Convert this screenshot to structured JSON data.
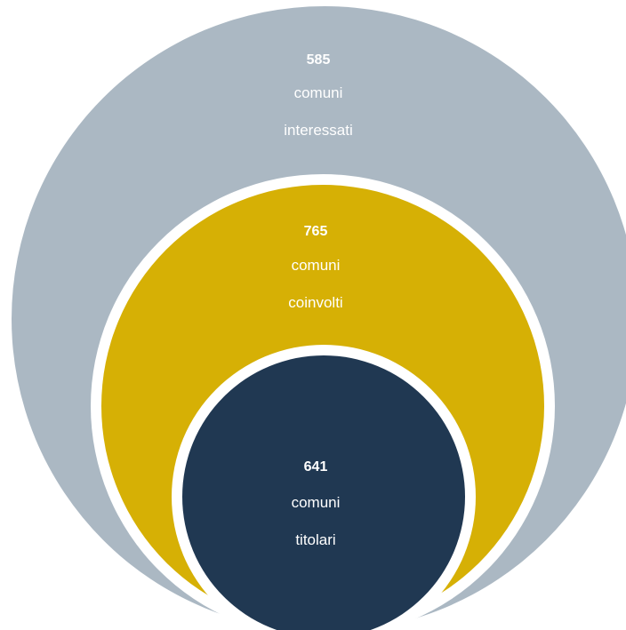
{
  "colors": {
    "outer": "#abb8c3",
    "middle": "#d6b005",
    "inner": "#203852",
    "gap": "#ffffff",
    "text": "#ffffff"
  },
  "circles": [
    {
      "value": "585",
      "line1": "comuni",
      "line2": "interessati"
    },
    {
      "value": "765",
      "line1": "comuni",
      "line2": "coinvolti"
    },
    {
      "value": "641",
      "line1": "comuni",
      "line2": "titolari"
    }
  ]
}
